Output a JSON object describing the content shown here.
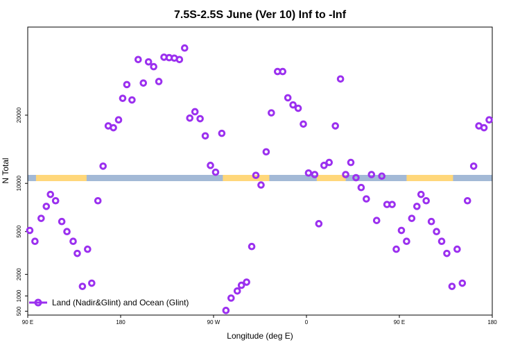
{
  "chart_data": {
    "type": "scatter",
    "title": "7.5S-2.5S June (Ver 10)   Inf to -Inf",
    "xlabel": "Longitude (deg E)",
    "ylabel": "N Total",
    "x_ticks": [
      {
        "value": 0,
        "label": "90 E"
      },
      {
        "value": 90,
        "label": "180"
      },
      {
        "value": 180,
        "label": "90 W"
      },
      {
        "value": 270,
        "label": "0"
      },
      {
        "value": 360,
        "label": "90 E"
      },
      {
        "value": 450,
        "label": "180"
      }
    ],
    "xlim": [
      0,
      450
    ],
    "y_scale": "sqrt",
    "y_ticks": [
      500,
      1000,
      2000,
      5000,
      10000,
      20000
    ],
    "ylim": [
      400,
      38000
    ],
    "grid": false,
    "legend": {
      "position": "bottom-left",
      "entries": [
        "Land (Nadir&Glint) and Ocean (Glint)"
      ]
    },
    "colors": {
      "points": "#9b30ef",
      "ocean_band": "#a3b9d6",
      "land_band": "#ffd77a"
    },
    "land_segments": [
      [
        8,
        57
      ],
      [
        189,
        234
      ],
      [
        280,
        308
      ],
      [
        367,
        412
      ]
    ],
    "series": [
      {
        "name": "Land (Nadir&Glint) and Ocean (Glint)",
        "points": [
          [
            2,
            5100
          ],
          [
            7,
            4200
          ],
          [
            13,
            6200
          ],
          [
            18,
            7400
          ],
          [
            22,
            8700
          ],
          [
            27,
            8000
          ],
          [
            33,
            5900
          ],
          [
            38,
            5000
          ],
          [
            44,
            4200
          ],
          [
            48,
            3300
          ],
          [
            53,
            1400
          ],
          [
            58,
            3600
          ],
          [
            62,
            1550
          ],
          [
            68,
            8000
          ],
          [
            73,
            12200
          ],
          [
            78,
            18200
          ],
          [
            83,
            17900
          ],
          [
            88,
            19200
          ],
          [
            92,
            23000
          ],
          [
            96,
            25600
          ],
          [
            101,
            22700
          ],
          [
            107,
            30700
          ],
          [
            112,
            25900
          ],
          [
            117,
            30200
          ],
          [
            122,
            29200
          ],
          [
            127,
            26200
          ],
          [
            132,
            31200
          ],
          [
            137,
            31100
          ],
          [
            142,
            31000
          ],
          [
            147,
            30700
          ],
          [
            152,
            33200
          ],
          [
            157,
            19500
          ],
          [
            162,
            20600
          ],
          [
            167,
            19400
          ],
          [
            172,
            16600
          ],
          [
            177,
            12300
          ],
          [
            182,
            11400
          ],
          [
            188,
            17000
          ],
          [
            192,
            520
          ],
          [
            197,
            920
          ],
          [
            203,
            1200
          ],
          [
            207,
            1450
          ],
          [
            212,
            1600
          ],
          [
            217,
            3800
          ],
          [
            221,
            11000
          ],
          [
            226,
            9800
          ],
          [
            231,
            14200
          ],
          [
            236,
            20400
          ],
          [
            242,
            28200
          ],
          [
            247,
            28200
          ],
          [
            252,
            23100
          ],
          [
            257,
            21800
          ],
          [
            262,
            21200
          ],
          [
            267,
            18500
          ],
          [
            272,
            11300
          ],
          [
            278,
            11100
          ],
          [
            282,
            5700
          ],
          [
            287,
            12300
          ],
          [
            292,
            12700
          ],
          [
            298,
            18200
          ],
          [
            303,
            26700
          ],
          [
            308,
            11100
          ],
          [
            313,
            12700
          ],
          [
            318,
            10700
          ],
          [
            323,
            9500
          ],
          [
            328,
            8200
          ],
          [
            333,
            11100
          ],
          [
            338,
            6000
          ],
          [
            343,
            10900
          ],
          [
            348,
            7600
          ],
          [
            353,
            7600
          ],
          [
            357,
            3600
          ],
          [
            362,
            5100
          ],
          [
            367,
            4200
          ],
          [
            372,
            6200
          ],
          [
            377,
            7400
          ],
          [
            381,
            8700
          ],
          [
            386,
            8000
          ],
          [
            391,
            5900
          ],
          [
            396,
            5000
          ],
          [
            401,
            4200
          ],
          [
            406,
            3300
          ],
          [
            411,
            1400
          ],
          [
            416,
            3600
          ],
          [
            421,
            1550
          ],
          [
            426,
            8000
          ],
          [
            432,
            12200
          ],
          [
            437,
            18200
          ],
          [
            442,
            17900
          ],
          [
            447,
            19200
          ]
        ]
      }
    ]
  }
}
